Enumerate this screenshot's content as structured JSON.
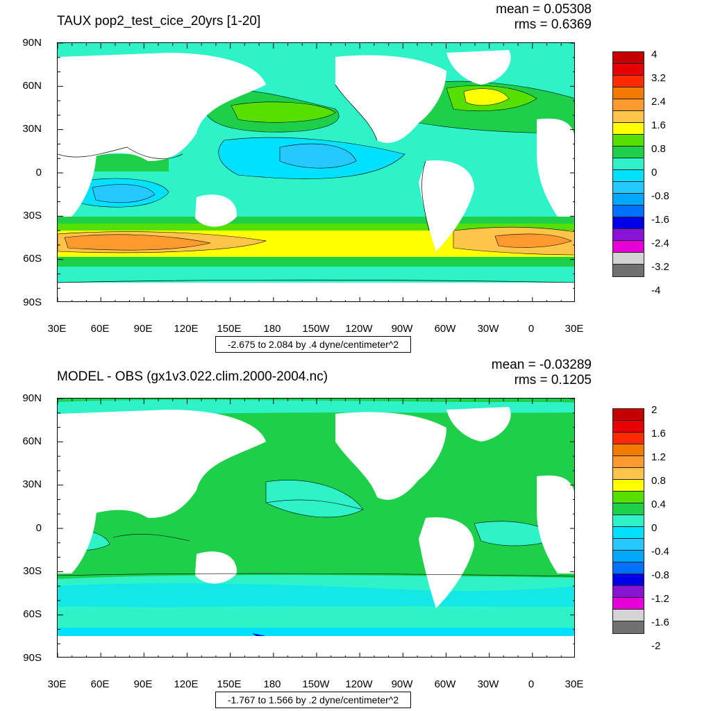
{
  "panels": [
    {
      "title": "TAUX pop2_test_cice_20yrs [1-20]",
      "stats": {
        "mean": "mean = 0.05308",
        "rms": "rms = 0.6369"
      },
      "range_text": "-2.675 to 2.084 by .4 dyne/centimeter^2",
      "y_ticks": [
        "90N",
        "60N",
        "30N",
        "0",
        "30S",
        "60S",
        "90S"
      ],
      "x_ticks": [
        "30E",
        "60E",
        "90E",
        "120E",
        "150E",
        "180",
        "150W",
        "120W",
        "90W",
        "60W",
        "30W",
        "0",
        "30E"
      ],
      "legend": {
        "labels": [
          "4",
          "3.2",
          "2.4",
          "1.6",
          "0.8",
          "0",
          "-0.8",
          "-1.6",
          "-2.4",
          "-3.2",
          "-4"
        ],
        "colors": [
          "#c40000",
          "#e80000",
          "#ff2a00",
          "#f27b00",
          "#ff9a2e",
          "#ffc54a",
          "#ffff00",
          "#55e000",
          "#1ecf4a",
          "#2ef2c8",
          "#00e0ff",
          "#25c8ff",
          "#00a8ff",
          "#0070ff",
          "#0000e6",
          "#8a14d6",
          "#e600d8",
          "#d4d4d4",
          "#707070"
        ]
      }
    },
    {
      "title": "MODEL - OBS (gx1v3.022.clim.2000-2004.nc)",
      "stats": {
        "mean": "mean = -0.03289",
        "rms": "rms = 0.1205"
      },
      "range_text": "-1.767 to 1.566 by .2 dyne/centimeter^2",
      "y_ticks": [
        "90N",
        "60N",
        "30N",
        "0",
        "30S",
        "60S",
        "90S"
      ],
      "x_ticks": [
        "30E",
        "60E",
        "90E",
        "120E",
        "150E",
        "180",
        "150W",
        "120W",
        "90W",
        "60W",
        "30W",
        "0",
        "30E"
      ],
      "legend": {
        "labels": [
          "2",
          "1.6",
          "1.2",
          "0.8",
          "0.4",
          "0",
          "-0.4",
          "-0.8",
          "-1.2",
          "-1.6",
          "-2"
        ],
        "colors": [
          "#c40000",
          "#e80000",
          "#ff2a00",
          "#f27b00",
          "#ff9a2e",
          "#ffc54a",
          "#ffff00",
          "#55e000",
          "#1ecf4a",
          "#2ef2c8",
          "#00e0ff",
          "#25c8ff",
          "#00a8ff",
          "#0070ff",
          "#0000e6",
          "#8a14d6",
          "#e600d8",
          "#d4d4d4",
          "#707070"
        ]
      }
    }
  ],
  "chart_data": [
    {
      "type": "heatmap",
      "title": "TAUX pop2_test_cice_20yrs [1-20]",
      "mean": 0.05308,
      "rms": 0.6369,
      "units": "dyne/centimeter^2",
      "min": -2.675,
      "max": 2.084,
      "contour_interval": 0.4,
      "xlim": [
        30,
        390
      ],
      "ylim": [
        -90,
        90
      ],
      "zonal_profile": [
        {
          "lat": 75,
          "value": 0.0
        },
        {
          "lat": 50,
          "value": 0.8
        },
        {
          "lat": 30,
          "value": 0.0
        },
        {
          "lat": 15,
          "value": -0.8
        },
        {
          "lat": 0,
          "value": -0.4
        },
        {
          "lat": -15,
          "value": -0.8
        },
        {
          "lat": -30,
          "value": 0.0
        },
        {
          "lat": -45,
          "value": 1.6
        },
        {
          "lat": -52,
          "value": 2.0
        },
        {
          "lat": -60,
          "value": 0.8
        },
        {
          "lat": -68,
          "value": -0.4
        }
      ]
    },
    {
      "type": "heatmap",
      "title": "MODEL - OBS (gx1v3.022.clim.2000-2004.nc)",
      "mean": -0.03289,
      "rms": 0.1205,
      "units": "dyne/centimeter^2",
      "min": -1.767,
      "max": 1.566,
      "contour_interval": 0.2,
      "xlim": [
        30,
        390
      ],
      "ylim": [
        -90,
        90
      ],
      "zonal_profile": [
        {
          "lat": 75,
          "value": 0.0
        },
        {
          "lat": 50,
          "value": 0.0
        },
        {
          "lat": 30,
          "value": 0.05
        },
        {
          "lat": 0,
          "value": 0.05
        },
        {
          "lat": -30,
          "value": 0.0
        },
        {
          "lat": -50,
          "value": -0.2
        },
        {
          "lat": -65,
          "value": -0.2
        }
      ]
    }
  ]
}
